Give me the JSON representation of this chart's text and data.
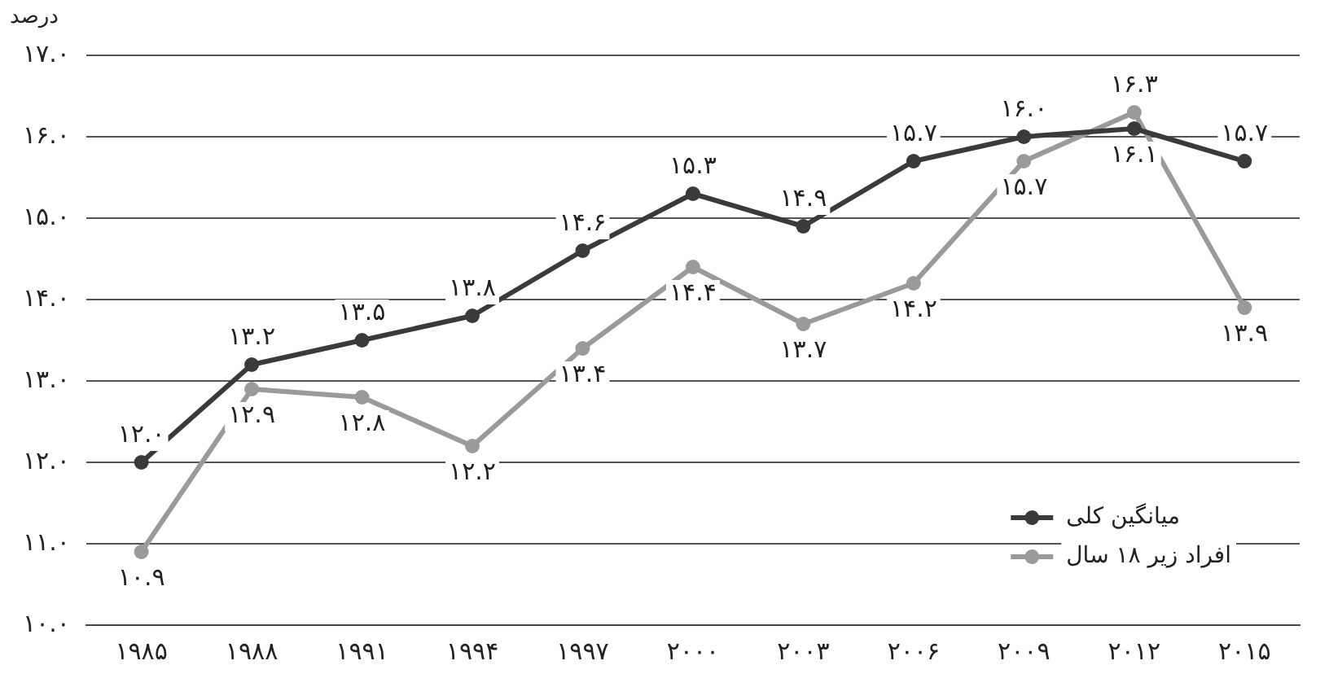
{
  "chart_data": {
    "type": "line",
    "ylabel": "درصد",
    "categories": [
      "۱۹۸۵",
      "۱۹۸۸",
      "۱۹۹۱",
      "۱۹۹۴",
      "۱۹۹۷",
      "۲۰۰۰",
      "۲۰۰۳",
      "۲۰۰۶",
      "۲۰۰۹",
      "۲۰۱۲",
      "۲۰۱۵"
    ],
    "series": [
      {
        "name": "میانگین کلی",
        "color": "#3a3a3a",
        "values": [
          12.0,
          13.2,
          13.5,
          13.8,
          14.6,
          15.3,
          14.9,
          15.7,
          16.0,
          16.1,
          15.7
        ],
        "value_labels": [
          "۱۲.۰",
          "۱۳.۲",
          "۱۳.۵",
          "۱۳.۸",
          "۱۴.۶",
          "۱۵.۳",
          "۱۴.۹",
          "۱۵.۷",
          "۱۶.۰",
          "۱۶.۱",
          "۱۵.۷"
        ]
      },
      {
        "name": "افراد زیر ۱۸ سال",
        "color": "#9a9a9a",
        "values": [
          10.9,
          12.9,
          12.8,
          12.2,
          13.4,
          14.4,
          13.7,
          14.2,
          15.7,
          16.3,
          13.9
        ],
        "value_labels": [
          "۱۰.۹",
          "۱۲.۹",
          "۱۲.۸",
          "۱۲.۲",
          "۱۳.۴",
          "۱۴.۴",
          "۱۳.۷",
          "۱۴.۲",
          "۱۵.۷",
          "۱۶.۳",
          "۱۳.۹"
        ]
      }
    ],
    "ylim": [
      10,
      17
    ],
    "yticks": [
      {
        "value": 10,
        "label": "۱۰.۰"
      },
      {
        "value": 11,
        "label": "۱۱.۰"
      },
      {
        "value": 12,
        "label": "۱۲.۰"
      },
      {
        "value": 13,
        "label": "۱۳.۰"
      },
      {
        "value": 14,
        "label": "۱۴.۰"
      },
      {
        "value": 15,
        "label": "۱۵.۰"
      },
      {
        "value": 16,
        "label": "۱۶.۰"
      },
      {
        "value": 17,
        "label": "۱۷.۰"
      }
    ],
    "grid": "y",
    "legend": "bottom right",
    "marker": "circle",
    "line_style": "solid"
  }
}
